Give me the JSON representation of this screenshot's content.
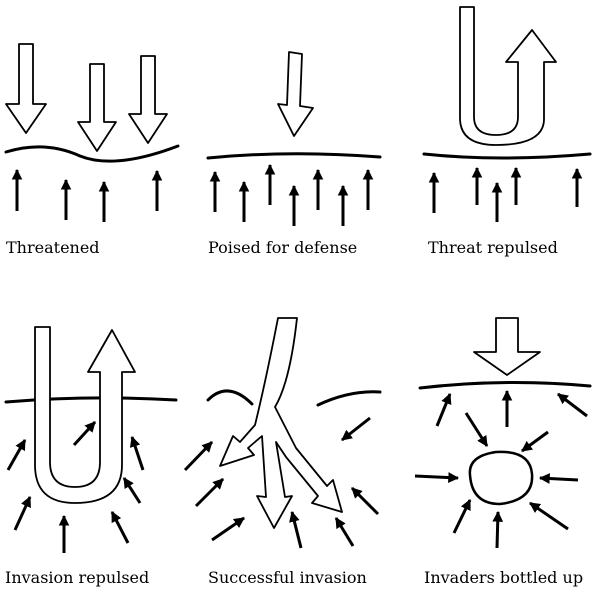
{
  "colors": {
    "ink": "#000000",
    "paper": "#ffffff"
  },
  "panels": [
    {
      "id": "threatened",
      "label": "Threatened"
    },
    {
      "id": "poised",
      "label": "Poised for defense"
    },
    {
      "id": "threat-repulsed",
      "label": "Threat repulsed"
    },
    {
      "id": "invasion-repulsed",
      "label": "Invasion repulsed"
    },
    {
      "id": "successful-invasion",
      "label": "Successful invasion"
    },
    {
      "id": "bottled-up",
      "label": "Invaders bottled up"
    }
  ]
}
